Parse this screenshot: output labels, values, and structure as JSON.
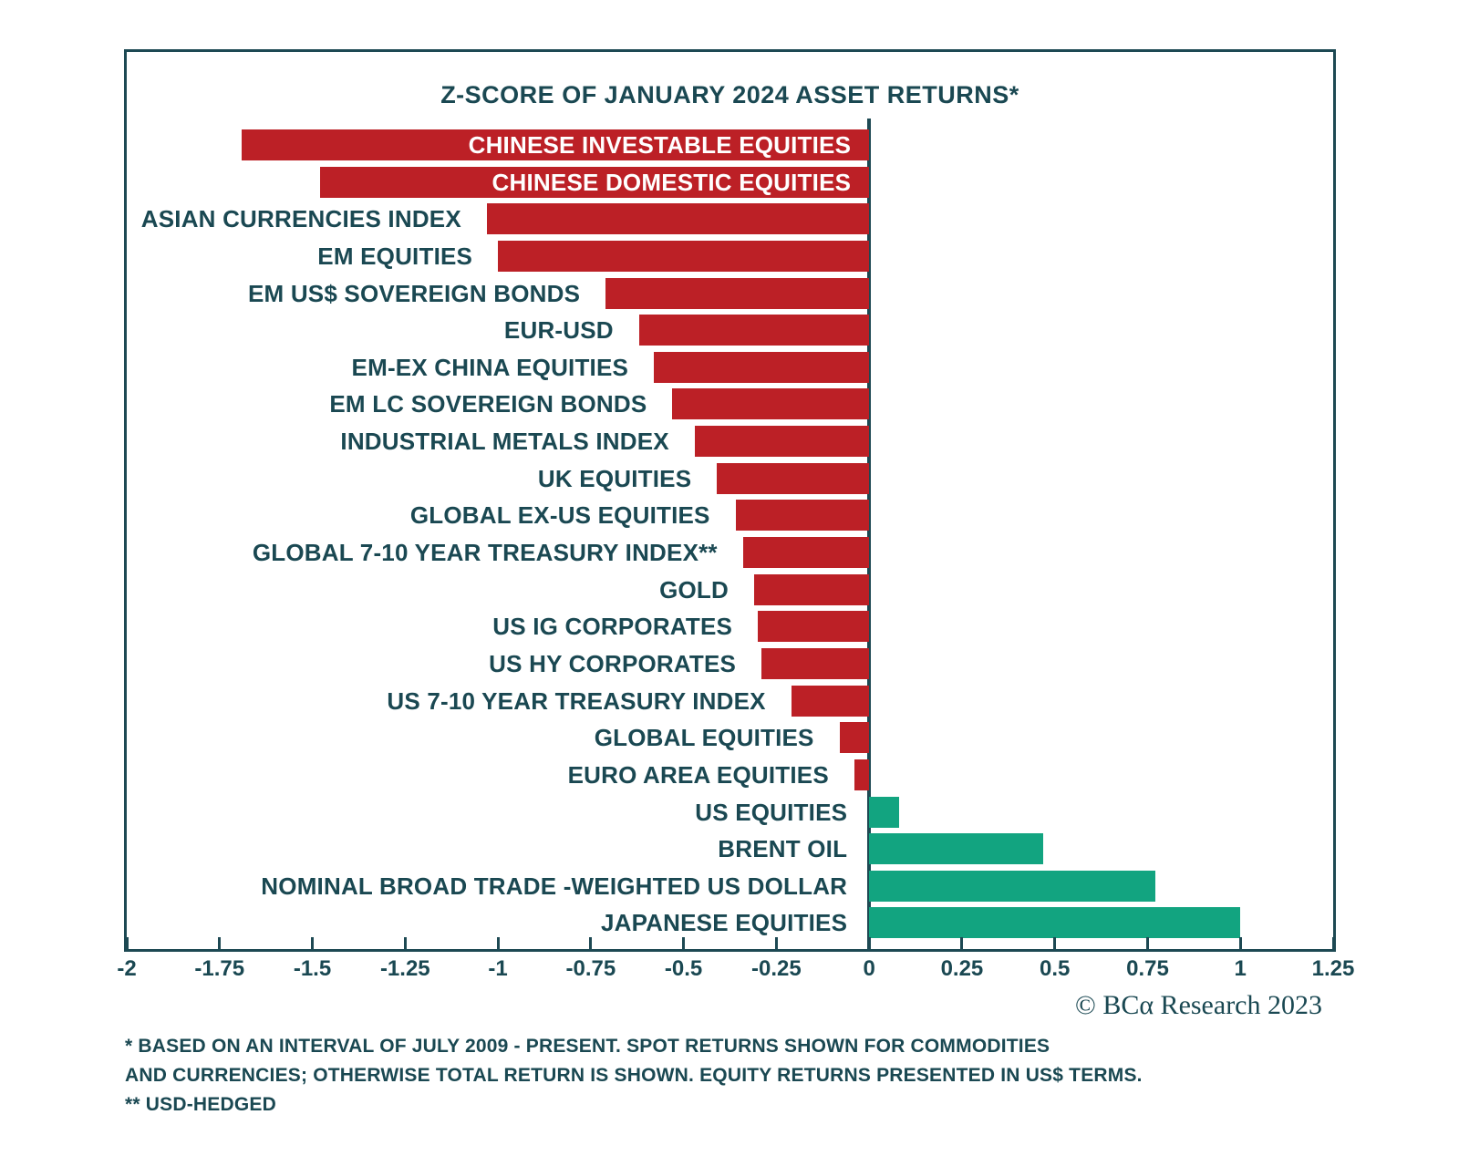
{
  "colors": {
    "negative_bar": "#bc2026",
    "positive_bar": "#12a480",
    "text_dark_teal": "#1a4852",
    "frame_border": "#1d4953",
    "inside_bar_label": "#ffffff",
    "background": "#ffffff"
  },
  "chart_data": {
    "type": "bar",
    "orientation": "horizontal",
    "title": "Z-SCORE OF JANUARY 2024 ASSET RETURNS*",
    "xlabel": "",
    "ylabel": "",
    "xlim": [
      -2,
      1.25
    ],
    "grid": false,
    "legend": "none",
    "categories": [
      "CHINESE INVESTABLE EQUITIES",
      "CHINESE DOMESTIC EQUITIES",
      "ASIAN CURRENCIES INDEX",
      "EM EQUITIES",
      "EM US$ SOVEREIGN BONDS",
      "EUR-USD",
      "EM-EX CHINA EQUITIES",
      "EM LC SOVEREIGN BONDS",
      "INDUSTRIAL METALS INDEX",
      "UK EQUITIES",
      "GLOBAL EX-US EQUITIES",
      "GLOBAL 7-10 YEAR TREASURY INDEX**",
      "GOLD",
      "US IG CORPORATES",
      "US HY CORPORATES",
      "US 7-10 YEAR TREASURY INDEX",
      "GLOBAL EQUITIES",
      "EURO AREA EQUITIES",
      "US EQUITIES",
      "BRENT OIL",
      "NOMINAL BROAD TRADE -WEIGHTED US DOLLAR",
      "JAPANESE EQUITIES"
    ],
    "values": [
      -1.69,
      -1.48,
      -1.03,
      -1.0,
      -0.71,
      -0.62,
      -0.58,
      -0.53,
      -0.47,
      -0.41,
      -0.36,
      -0.34,
      -0.31,
      -0.3,
      -0.29,
      -0.21,
      -0.08,
      -0.04,
      0.08,
      0.47,
      0.77,
      1.0
    ],
    "inside_label_indices": [
      0,
      1
    ],
    "xticks": [
      -2,
      -1.75,
      -1.5,
      -1.25,
      -1,
      -0.75,
      -0.5,
      -0.25,
      0,
      0.25,
      0.5,
      0.75,
      1,
      1.25
    ],
    "xtick_labels": [
      "-2",
      "-1.75",
      "-1.5",
      "-1.25",
      "-1",
      "-0.75",
      "-0.5",
      "-0.25",
      "0",
      "0.25",
      "0.5",
      "0.75",
      "1",
      "1.25"
    ]
  },
  "annotations": {
    "copyright": "© BCα Research 2023",
    "footnote_line1": "* BASED ON AN INTERVAL OF JULY 2009 - PRESENT. SPOT RETURNS SHOWN FOR COMMODITIES",
    "footnote_line2": "AND CURRENCIES; OTHERWISE TOTAL RETURN IS SHOWN. EQUITY RETURNS PRESENTED IN US$ TERMS.",
    "footnote_line3": "** USD-HEDGED"
  }
}
